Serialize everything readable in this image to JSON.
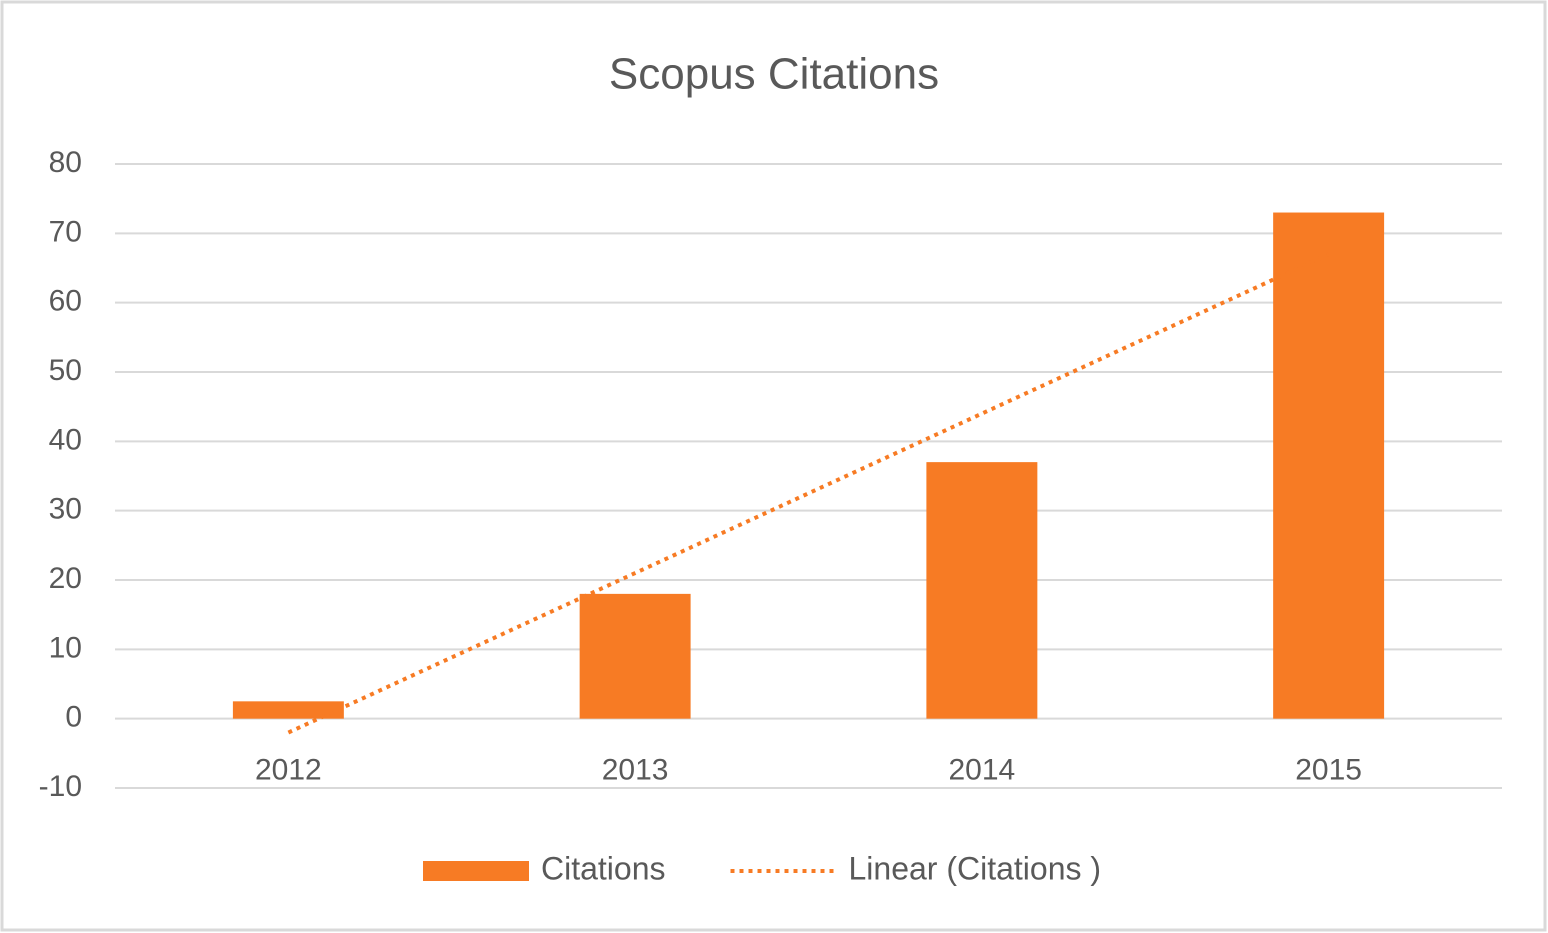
{
  "chart_data": {
    "type": "bar",
    "title": "Scopus Citations",
    "categories": [
      "2012",
      "2013",
      "2014",
      "2015"
    ],
    "series": [
      {
        "name": "Citations",
        "type": "bar",
        "color": "#f77b24",
        "values": [
          2.5,
          18,
          37,
          73
        ]
      },
      {
        "name": "Linear (Citations )",
        "type": "line",
        "color": "#f77b24",
        "values": [
          -2,
          21,
          44,
          67
        ]
      }
    ],
    "ylim": [
      -10,
      80
    ],
    "yticks": [
      -10,
      0,
      10,
      20,
      30,
      40,
      50,
      60,
      70,
      80
    ],
    "grid": true,
    "legend": "bottom"
  }
}
